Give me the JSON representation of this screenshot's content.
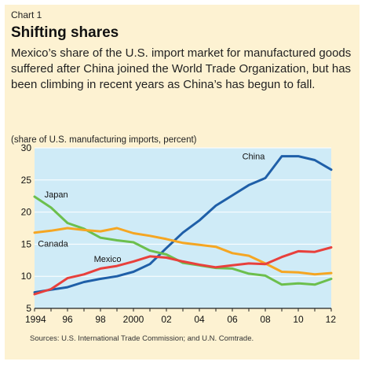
{
  "header": {
    "chart_label": "Chart 1",
    "title": "Shifting shares",
    "description": "Mexico’s share of the U.S. import market for manufactured goods suffered after China joined the World Trade Organization, but has been climbing in recent years as China’s has begun to fall."
  },
  "footer": {
    "sources": "Sources: U.S. International Trade Commission; and U.N. Comtrade."
  },
  "colors": {
    "panel_bg": "#fdf2d2",
    "plot_bg": "#cfebf7",
    "china": "#1f5fa8",
    "japan": "#6cbf4d",
    "canada": "#f5a623",
    "mexico": "#e8403c"
  },
  "chart_data": {
    "type": "line",
    "ylabel": "(share of U.S. manufacturing imports, percent)",
    "ylim": [
      5,
      30
    ],
    "xlim": [
      1994,
      2012
    ],
    "yticks": [
      5,
      10,
      15,
      20,
      25,
      30
    ],
    "xticks": [
      {
        "value": 1994,
        "label": "1994"
      },
      {
        "value": 1996,
        "label": "96"
      },
      {
        "value": 1998,
        "label": "98"
      },
      {
        "value": 2000,
        "label": "2000"
      },
      {
        "value": 2002,
        "label": "02"
      },
      {
        "value": 2004,
        "label": "04"
      },
      {
        "value": 2006,
        "label": "06"
      },
      {
        "value": 2008,
        "label": "08"
      },
      {
        "value": 2010,
        "label": "10"
      },
      {
        "value": 2012,
        "label": "12"
      }
    ],
    "grid": true,
    "x": [
      1994,
      1995,
      1996,
      1997,
      1998,
      1999,
      2000,
      2001,
      2002,
      2003,
      2004,
      2005,
      2006,
      2007,
      2008,
      2009,
      2010,
      2011,
      2012
    ],
    "series": [
      {
        "name": "China",
        "color_key": "china",
        "values": [
          7.5,
          7.9,
          8.3,
          9.1,
          9.6,
          10.0,
          10.7,
          11.9,
          14.4,
          16.8,
          18.7,
          21.0,
          22.6,
          24.2,
          25.3,
          28.7,
          28.7,
          28.1,
          26.6
        ]
      },
      {
        "name": "Japan",
        "color_key": "japan",
        "values": [
          22.4,
          20.7,
          18.3,
          17.4,
          16.0,
          15.6,
          15.3,
          14.0,
          13.4,
          12.1,
          11.7,
          11.3,
          11.2,
          10.4,
          10.1,
          8.7,
          8.9,
          8.7,
          9.6
        ]
      },
      {
        "name": "Canada",
        "color_key": "canada",
        "values": [
          16.8,
          17.1,
          17.5,
          17.2,
          17.0,
          17.5,
          16.7,
          16.3,
          15.8,
          15.2,
          14.9,
          14.6,
          13.6,
          13.2,
          12.0,
          10.7,
          10.6,
          10.3,
          10.5
        ]
      },
      {
        "name": "Mexico",
        "color_key": "mexico",
        "values": [
          7.2,
          8.0,
          9.7,
          10.3,
          11.2,
          11.6,
          12.3,
          13.1,
          12.9,
          12.3,
          11.8,
          11.4,
          11.7,
          12.0,
          11.9,
          13.0,
          13.9,
          13.8,
          14.5
        ]
      }
    ],
    "annotations": [
      {
        "series": "China",
        "text": "China",
        "x": 2006.6,
        "y": 28.2
      },
      {
        "series": "Japan",
        "text": "Japan",
        "x": 1994.6,
        "y": 22.3
      },
      {
        "series": "Canada",
        "text": "Canada",
        "x": 1994.2,
        "y": 14.6
      },
      {
        "series": "Mexico",
        "text": "Mexico",
        "x": 1997.6,
        "y": 12.2
      }
    ]
  }
}
